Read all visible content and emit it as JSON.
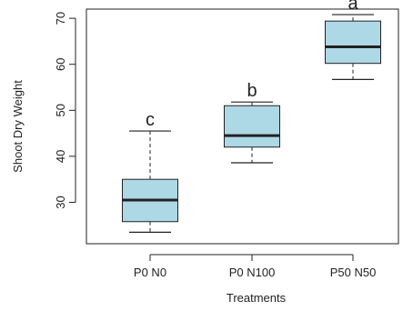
{
  "chart_data": {
    "type": "boxplot",
    "xlabel": "Treatments",
    "ylabel": "Shoot Dry Weight",
    "ylim": [
      21,
      72
    ],
    "yticks": [
      30,
      40,
      50,
      60,
      70
    ],
    "categories": [
      "P0 N0",
      "P0 N100",
      "P50 N50"
    ],
    "boxes": [
      {
        "category": "P0 N0",
        "whisker_low": 23.5,
        "q1": 25.8,
        "median": 30.5,
        "q3": 35.0,
        "whisker_high": 45.5,
        "label": "c"
      },
      {
        "category": "P0 N100",
        "whisker_low": 38.6,
        "q1": 42.0,
        "median": 44.5,
        "q3": 51.0,
        "whisker_high": 51.8,
        "label": "b"
      },
      {
        "category": "P50 N50",
        "whisker_low": 56.7,
        "q1": 60.2,
        "median": 63.8,
        "q3": 69.4,
        "whisker_high": 70.8,
        "label": "a"
      }
    ],
    "grid": false,
    "colors": {
      "box_fill": "#add8e6",
      "stroke": "#222222"
    }
  }
}
